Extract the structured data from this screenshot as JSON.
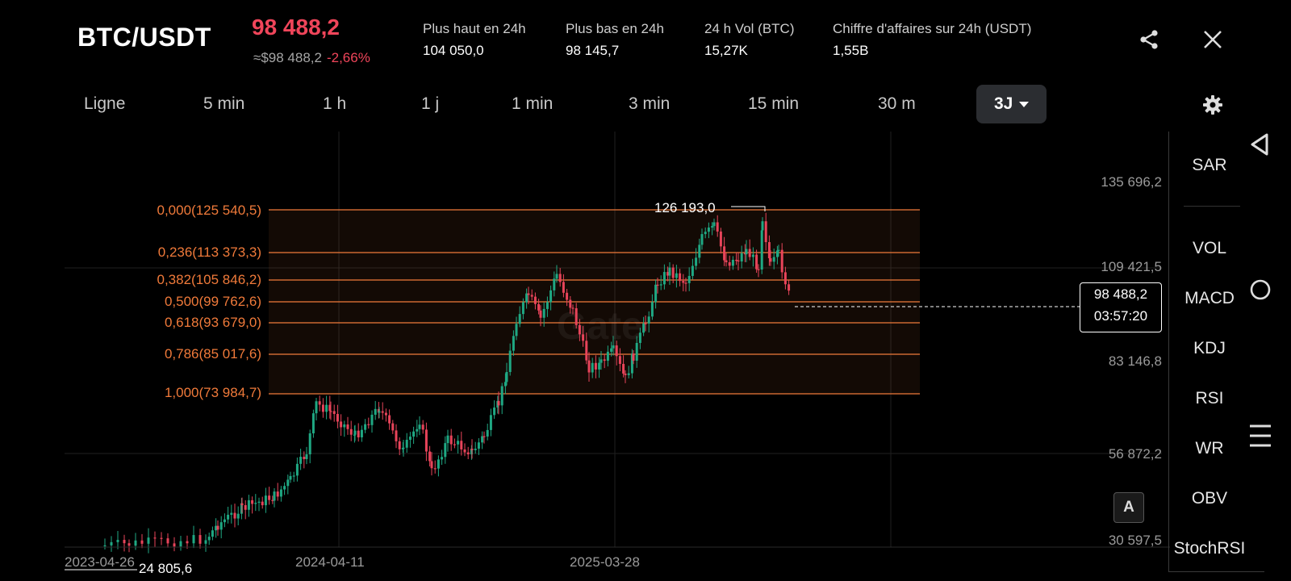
{
  "header": {
    "pair": "BTC/USDT",
    "last_price": "98 488,2",
    "usd_price": "≈$98 488,2",
    "change": "-2,66%",
    "stats": [
      {
        "label": "Plus haut en 24h",
        "value": "104 050,0"
      },
      {
        "label": "Plus bas en 24h",
        "value": "98 145,7"
      },
      {
        "label": "24 h Vol (BTC)",
        "value": "15,27K"
      },
      {
        "label": "Chiffre d'affaires sur 24h (USDT)",
        "value": "1,55B"
      }
    ],
    "icons": {
      "share": "share-icon",
      "close": "close-icon"
    }
  },
  "tabs": [
    "Ligne",
    "5 min",
    "1 h",
    "1 j",
    "1 min",
    "3 min",
    "15 min",
    "30 m",
    "3J"
  ],
  "active_tab": "3J",
  "chart": {
    "y_axis": [
      "135 696,2",
      "109 421,5",
      "83 146,8",
      "56 872,2",
      "30 597,5"
    ],
    "x_axis": [
      "2023-04-26",
      "2024-04-11",
      "2025-03-28"
    ],
    "fib_levels": [
      "0,000(125 540,5)",
      "0,236(113 373,3)",
      "0,382(105 846,2)",
      "0,500(99 762,6)",
      "0,618(93 679,0)",
      "0,786(85 017,6)",
      "1,000(73 984,7)"
    ],
    "high_marker": "126 193,0",
    "low_marker": "24 805,6",
    "current_price": "98 488,2",
    "countdown": "03:57:20",
    "watermark": "Gate",
    "auto_button": "A"
  },
  "indicators": [
    "SAR",
    "VOL",
    "MACD",
    "KDJ",
    "RSI",
    "WR",
    "OBV",
    "StochRSI"
  ],
  "colors": {
    "up": "#1fa883",
    "down": "#e8445a",
    "fib": "#f07a3a",
    "background": "#000000"
  }
}
